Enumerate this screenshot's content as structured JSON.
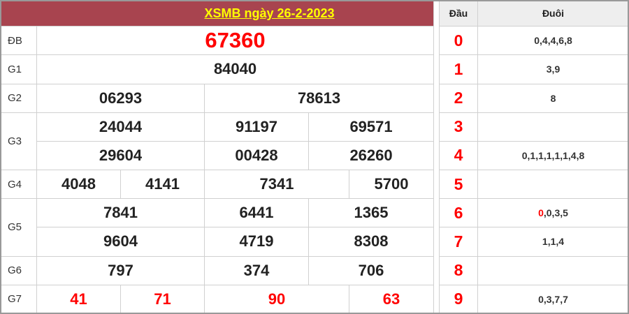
{
  "title": "XSMB ngày 26-2-2023",
  "prizes": {
    "db": {
      "label": "ĐB",
      "values": [
        "67360"
      ]
    },
    "g1": {
      "label": "G1",
      "values": [
        "84040"
      ]
    },
    "g2": {
      "label": "G2",
      "values": [
        "06293",
        "78613"
      ]
    },
    "g3": {
      "label": "G3",
      "values": [
        "24044",
        "91197",
        "69571",
        "29604",
        "00428",
        "26260"
      ]
    },
    "g4": {
      "label": "G4",
      "values": [
        "4048",
        "4141",
        "7341",
        "5700"
      ]
    },
    "g5": {
      "label": "G5",
      "values": [
        "7841",
        "6441",
        "1365",
        "9604",
        "4719",
        "8308"
      ]
    },
    "g6": {
      "label": "G6",
      "values": [
        "797",
        "374",
        "706"
      ]
    },
    "g7": {
      "label": "G7",
      "values": [
        "41",
        "71",
        "90",
        "63"
      ]
    }
  },
  "loto": {
    "headers": [
      "Đầu",
      "Đuôi"
    ],
    "rows": [
      {
        "dau": "0",
        "duoi": "0,4,4,6,8"
      },
      {
        "dau": "1",
        "duoi": "3,9"
      },
      {
        "dau": "2",
        "duoi": "8"
      },
      {
        "dau": "3",
        "duoi": ""
      },
      {
        "dau": "4",
        "duoi": "0,1,1,1,1,1,4,8"
      },
      {
        "dau": "5",
        "duoi": ""
      },
      {
        "dau": "6",
        "duoi_highlight": "0",
        "duoi": ",0,3,5"
      },
      {
        "dau": "7",
        "duoi": "1,1,4"
      },
      {
        "dau": "8",
        "duoi": ""
      },
      {
        "dau": "9",
        "duoi": "0,3,7,7"
      }
    ]
  },
  "colors": {
    "header": "#a8444f",
    "title": "#ffff00",
    "highlight": "#ff0000"
  }
}
